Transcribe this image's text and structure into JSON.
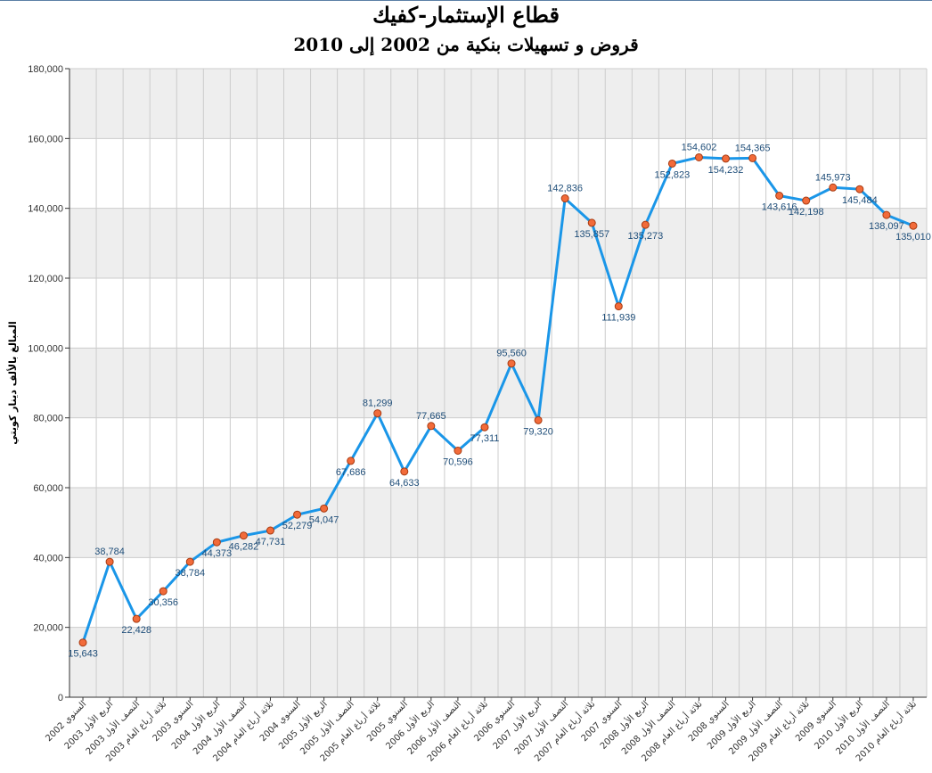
{
  "chart_data": {
    "type": "line",
    "title": "قطاع الإستثمار-كفيك",
    "subtitle": "قروض و تسهيلات بنكية من 2002 إلى 2010",
    "ylabel": "المبالغ بالألف دينار كويتي",
    "xlabel": "",
    "ylim": [
      0,
      180000
    ],
    "yticks": [
      0,
      20000,
      40000,
      60000,
      80000,
      100000,
      120000,
      140000,
      160000,
      180000
    ],
    "ytick_labels": [
      "0",
      "20,000",
      "40,000",
      "60,000",
      "80,000",
      "100,000",
      "120,000",
      "140,000",
      "160,000",
      "180,000"
    ],
    "grid": true,
    "legend": "none",
    "categories": [
      "السنوي 2002",
      "الربع الأول 2003",
      "النصف الأول 2003",
      "ثلاثة أرباع العام 2003",
      "السنوي 2003",
      "الربع الأول 2004",
      "النصف الأول 2004",
      "ثلاثة أرباع العام 2004",
      "السنوي 2004",
      "الربع الأول 2005",
      "النصف الأول 2005",
      "ثلاثة أرباع العام 2005",
      "السنوي 2005",
      "الربع الأول 2006",
      "النصف الأول 2006",
      "ثلاثة أرباع العام 2006",
      "السنوي 2006",
      "الربع الأول 2007",
      "النصف الأول 2007",
      "ثلاثة أرباع العام 2007",
      "السنوي 2007",
      "الربع الأول 2008",
      "النصف الأول 2008",
      "ثلاثة أرباع العام 2008",
      "السنوي 2008",
      "الربع الأول 2009",
      "النصف الأول 2009",
      "ثلاثة أرباع العام 2009",
      "السنوي 2009",
      "الربع الأول 2010",
      "النصف الأول 2010",
      "ثلاثة أرباع العام 2010"
    ],
    "values": [
      15643,
      38784,
      22428,
      30356,
      38784,
      44373,
      46282,
      47731,
      52279,
      54047,
      67686,
      81299,
      64633,
      77665,
      70596,
      77311,
      95560,
      79320,
      142836,
      135857,
      111939,
      135273,
      152823,
      154602,
      154232,
      154365,
      143616,
      142198,
      145973,
      145484,
      138097,
      135010
    ],
    "data_labels": [
      "15,643",
      "38,784",
      "22,428",
      "30,356",
      "38,784",
      "44,373",
      "46,282",
      "47,731",
      "52,279",
      "54,047",
      "67,686",
      "81,299",
      "64,633",
      "77,665",
      "70,596",
      "77,311",
      "95,560",
      "79,320",
      "142,836",
      "135,857",
      "111,939",
      "135,273",
      "152,823",
      "154,602",
      "154,232",
      "154,365",
      "143,616",
      "142,198",
      "145,973",
      "145,484",
      "138,097",
      "135,010"
    ],
    "colors": {
      "line": "#1a96e8",
      "marker_fill": "#f26b3a",
      "marker_stroke": "#a83a10",
      "label": "#1f4e79",
      "band": "#eeeeee",
      "grid": "#cccccc",
      "axis": "#333333"
    }
  }
}
